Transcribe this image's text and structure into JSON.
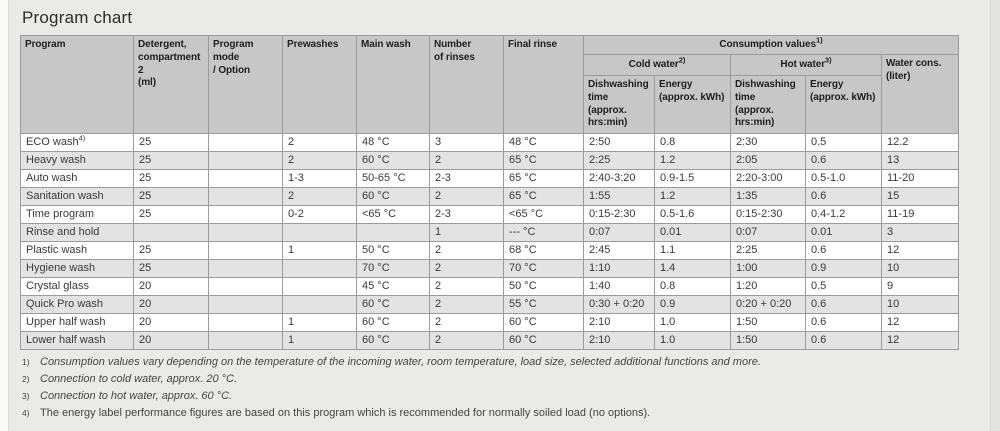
{
  "page": {
    "title": "Program chart"
  },
  "colors": {
    "page_bg": "#eaeae8",
    "header_bg": "#c7c7c7",
    "row_bg": "#ffffff",
    "row_alt_bg": "#e3e3e3",
    "border": "#9b9b9b"
  },
  "table": {
    "headers": {
      "program": "Program",
      "detergent": "Detergent,\ncompartment 2\n(ml)",
      "program_mode": "Program mode\n/ Option",
      "prewashes": "Prewashes",
      "main_wash": "Main wash",
      "rinses": "Number\nof rinses",
      "final_rinse": "Final rinse",
      "consumption": "Consumption values",
      "consumption_sup": "1)",
      "cold_water": "Cold water",
      "cold_water_sup": "2)",
      "hot_water": "Hot water",
      "hot_water_sup": "3)",
      "dishwashing_time_cold": "Dishwashing\ntime\n(approx.\nhrs:min)",
      "energy_cold": "Energy\n(approx. kWh)",
      "dishwashing_time_hot": "Dishwashing\ntime\n(approx.\nhrs:min)",
      "energy_hot": "Energy\n(approx. kWh)",
      "water_cons": "Water cons.\n(liter)"
    },
    "rows": [
      {
        "program": "ECO wash",
        "program_sup": "4)",
        "detergent": "25",
        "mode": "",
        "prewashes": "2",
        "main_wash": "48 °C",
        "rinses": "3",
        "final_rinse": "48 °C",
        "cold_time": "2:50",
        "cold_energy": "0.8",
        "hot_time": "2:30",
        "hot_energy": "0.5",
        "water": "12.2"
      },
      {
        "program": "Heavy wash",
        "detergent": "25",
        "mode": "",
        "prewashes": "2",
        "main_wash": "60 °C",
        "rinses": "2",
        "final_rinse": "65 °C",
        "cold_time": "2:25",
        "cold_energy": "1.2",
        "hot_time": "2:05",
        "hot_energy": "0.6",
        "water": "13"
      },
      {
        "program": "Auto wash",
        "detergent": "25",
        "mode": "",
        "prewashes": "1-3",
        "main_wash": "50-65 °C",
        "rinses": "2-3",
        "final_rinse": "65 °C",
        "cold_time": "2:40-3:20",
        "cold_energy": "0.9-1.5",
        "hot_time": "2:20-3:00",
        "hot_energy": "0.5-1.0",
        "water": "11-20"
      },
      {
        "program": "Sanitation wash",
        "detergent": "25",
        "mode": "",
        "prewashes": "2",
        "main_wash": "60 °C",
        "rinses": "2",
        "final_rinse": "65 °C",
        "cold_time": "1:55",
        "cold_energy": "1.2",
        "hot_time": "1:35",
        "hot_energy": "0.6",
        "water": "15"
      },
      {
        "program": "Time program",
        "detergent": "25",
        "mode": "",
        "prewashes": "0-2",
        "main_wash": "<65 °C",
        "rinses": "2-3",
        "final_rinse": "<65 °C",
        "cold_time": "0:15-2:30",
        "cold_energy": "0.5-1.6",
        "hot_time": "0:15-2:30",
        "hot_energy": "0.4-1.2",
        "water": "11-19"
      },
      {
        "program": "Rinse and hold",
        "detergent": "",
        "mode": "",
        "prewashes": "",
        "main_wash": "",
        "rinses": "1",
        "final_rinse": "--- °C",
        "cold_time": "0:07",
        "cold_energy": "0.01",
        "hot_time": "0:07",
        "hot_energy": "0.01",
        "water": "3"
      },
      {
        "program": "Plastic wash",
        "detergent": "25",
        "mode": "",
        "prewashes": "1",
        "main_wash": "50 °C",
        "rinses": "2",
        "final_rinse": "68 °C",
        "cold_time": "2:45",
        "cold_energy": "1.1",
        "hot_time": "2:25",
        "hot_energy": "0.6",
        "water": "12"
      },
      {
        "program": "Hygiene wash",
        "detergent": "25",
        "mode": "",
        "prewashes": "",
        "main_wash": "70 °C",
        "rinses": "2",
        "final_rinse": "70 °C",
        "cold_time": "1:10",
        "cold_energy": "1.4",
        "hot_time": "1:00",
        "hot_energy": "0.9",
        "water": "10"
      },
      {
        "program": "Crystal glass",
        "detergent": "20",
        "mode": "",
        "prewashes": "",
        "main_wash": "45 °C",
        "rinses": "2",
        "final_rinse": "50 °C",
        "cold_time": "1:40",
        "cold_energy": "0.8",
        "hot_time": "1:20",
        "hot_energy": "0.5",
        "water": "9"
      },
      {
        "program": "Quick Pro wash",
        "detergent": "20",
        "mode": "",
        "prewashes": "",
        "main_wash": "60 °C",
        "rinses": "2",
        "final_rinse": "55 °C",
        "cold_time": "0:30 + 0:20",
        "cold_energy": "0.9",
        "hot_time": "0:20 + 0:20",
        "hot_energy": "0.6",
        "water": "10"
      },
      {
        "program": "Upper half wash",
        "detergent": "20",
        "mode": "",
        "prewashes": "1",
        "main_wash": "60 °C",
        "rinses": "2",
        "final_rinse": "60 °C",
        "cold_time": "2:10",
        "cold_energy": "1.0",
        "hot_time": "1:50",
        "hot_energy": "0.6",
        "water": "12"
      },
      {
        "program": "Lower half wash",
        "detergent": "20",
        "mode": "",
        "prewashes": "1",
        "main_wash": "60 °C",
        "rinses": "2",
        "final_rinse": "60 °C",
        "cold_time": "2:10",
        "cold_energy": "1.0",
        "hot_time": "1:50",
        "hot_energy": "0.6",
        "water": "12"
      }
    ],
    "footnotes": [
      {
        "marker": "1)",
        "text": "Consumption values vary depending on the temperature of the incoming water, room temperature, load size, selected additional functions and more.",
        "italic": true
      },
      {
        "marker": "2)",
        "text": "Connection to cold water, approx. 20 °C.",
        "italic": true
      },
      {
        "marker": "3)",
        "text": "Connection to hot water, approx. 60 °C.",
        "italic": true
      },
      {
        "marker": "4)",
        "text": "The energy label performance figures are based on this program which is recommended for normally soiled load (no options).",
        "italic": false
      }
    ]
  }
}
